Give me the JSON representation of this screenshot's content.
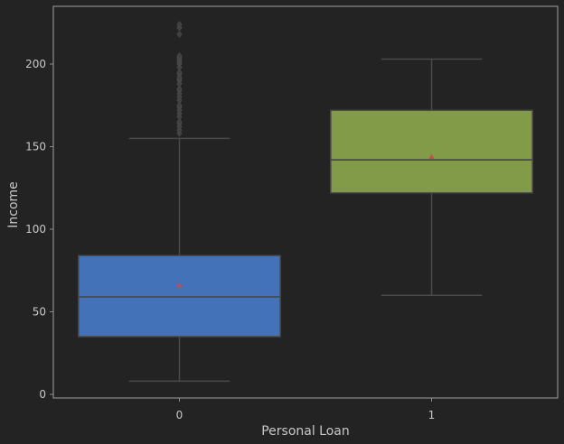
{
  "chart_data": {
    "type": "box",
    "xlabel": "Personal Loan",
    "ylabel": "Income",
    "ylim": [
      -2,
      235
    ],
    "yticks": [
      0,
      50,
      100,
      150,
      200
    ],
    "categories": [
      "0",
      "1"
    ],
    "grid": false,
    "background_color": "#232323",
    "spine_color": "#8c8c8c",
    "text_color": "#c8c8c8",
    "boxes": [
      {
        "category": "0",
        "whisker_low": 8,
        "q1": 35,
        "median": 59,
        "q3": 84,
        "whisker_high": 155,
        "mean": 66,
        "color": "#4472b8",
        "outliers": [
          158,
          160,
          162,
          164,
          165,
          168,
          170,
          172,
          174,
          175,
          178,
          180,
          182,
          184,
          185,
          188,
          190,
          191,
          192,
          194,
          195,
          198,
          200,
          201,
          202,
          203,
          204,
          205,
          218,
          222,
          224
        ]
      },
      {
        "category": "1",
        "whisker_low": 60,
        "q1": 122,
        "median": 142,
        "q3": 172,
        "whisker_high": 203,
        "mean": 144,
        "color": "#829b48",
        "outliers": []
      }
    ]
  }
}
